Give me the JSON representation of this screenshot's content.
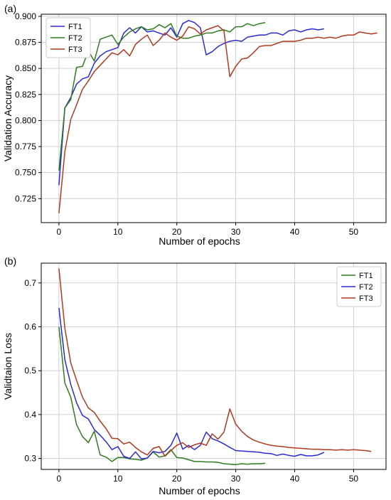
{
  "chart_data": [
    {
      "panel": "(a)",
      "type": "line",
      "xlabel": "Number of epochs",
      "ylabel": "Validation Accuracy",
      "xlim": [
        -3,
        55.5
      ],
      "ylim": [
        0.702,
        0.902
      ],
      "xticks": [
        0,
        10,
        20,
        30,
        40,
        50
      ],
      "yticks": [
        0.725,
        0.75,
        0.775,
        0.8,
        0.825,
        0.85,
        0.875,
        0.9
      ],
      "ytick_labels": [
        "0.725",
        "0.750",
        "0.775",
        "0.800",
        "0.825",
        "0.850",
        "0.875",
        "0.900"
      ],
      "grid": true,
      "legend_position": "top-left",
      "series": [
        {
          "name": "FT1",
          "color": "#2a2ad6",
          "x": [
            0,
            1,
            2,
            3,
            4,
            5,
            6,
            7,
            8,
            9,
            10,
            11,
            12,
            13,
            14,
            15,
            16,
            17,
            18,
            19,
            20,
            21,
            22,
            23,
            24,
            25,
            26,
            27,
            28,
            29,
            30,
            31,
            32,
            33,
            34,
            35,
            36,
            37,
            38,
            39,
            40,
            41,
            42,
            43,
            44,
            45
          ],
          "y": [
            0.738,
            0.812,
            0.822,
            0.835,
            0.84,
            0.842,
            0.855,
            0.862,
            0.866,
            0.868,
            0.87,
            0.884,
            0.889,
            0.884,
            0.89,
            0.885,
            0.886,
            0.884,
            0.882,
            0.889,
            0.88,
            0.893,
            0.896,
            0.894,
            0.889,
            0.863,
            0.866,
            0.871,
            0.874,
            0.876,
            0.877,
            0.876,
            0.88,
            0.881,
            0.882,
            0.882,
            0.884,
            0.884,
            0.882,
            0.886,
            0.887,
            0.885,
            0.887,
            0.888,
            0.887,
            0.888
          ]
        },
        {
          "name": "FT2",
          "color": "#2e7d1e",
          "x": [
            0,
            1,
            2,
            3,
            4,
            5,
            6,
            7,
            8,
            9,
            10,
            11,
            12,
            13,
            14,
            15,
            16,
            17,
            18,
            19,
            20,
            21,
            22,
            23,
            24,
            25,
            26,
            27,
            28,
            29,
            30,
            31,
            32,
            33,
            34,
            35
          ],
          "y": [
            0.752,
            0.812,
            0.82,
            0.851,
            0.852,
            0.867,
            0.857,
            0.878,
            0.88,
            0.882,
            0.873,
            0.88,
            0.885,
            0.888,
            0.89,
            0.887,
            0.888,
            0.892,
            0.889,
            0.893,
            0.881,
            0.879,
            0.879,
            0.881,
            0.882,
            0.884,
            0.884,
            0.886,
            0.887,
            0.885,
            0.89,
            0.89,
            0.893,
            0.891,
            0.893,
            0.894
          ]
        },
        {
          "name": "FT3",
          "color": "#b03a1e",
          "x": [
            0,
            1,
            2,
            3,
            4,
            5,
            6,
            7,
            8,
            9,
            10,
            11,
            12,
            13,
            14,
            15,
            16,
            17,
            18,
            19,
            20,
            21,
            22,
            23,
            24,
            25,
            26,
            27,
            28,
            29,
            30,
            31,
            32,
            33,
            34,
            35,
            36,
            37,
            38,
            39,
            40,
            41,
            42,
            43,
            44,
            45,
            46,
            47,
            48,
            49,
            50,
            51,
            52,
            53,
            54
          ],
          "y": [
            0.711,
            0.77,
            0.801,
            0.815,
            0.83,
            0.838,
            0.847,
            0.853,
            0.859,
            0.865,
            0.863,
            0.868,
            0.862,
            0.873,
            0.878,
            0.882,
            0.872,
            0.877,
            0.884,
            0.88,
            0.877,
            0.881,
            0.89,
            0.888,
            0.883,
            0.887,
            0.889,
            0.891,
            0.886,
            0.842,
            0.852,
            0.859,
            0.86,
            0.865,
            0.871,
            0.872,
            0.872,
            0.874,
            0.876,
            0.876,
            0.876,
            0.877,
            0.879,
            0.879,
            0.88,
            0.879,
            0.88,
            0.879,
            0.881,
            0.882,
            0.882,
            0.885,
            0.884,
            0.883,
            0.884
          ]
        }
      ]
    },
    {
      "panel": "(b)",
      "type": "line",
      "xlabel": "Number of epochs",
      "ylabel": "Validtaion Loss",
      "xlim": [
        -3,
        55.5
      ],
      "ylim": [
        0.275,
        0.745
      ],
      "xticks": [
        0,
        10,
        20,
        30,
        40,
        50
      ],
      "yticks": [
        0.3,
        0.4,
        0.5,
        0.6,
        0.7
      ],
      "ytick_labels": [
        "0.3",
        "0.4",
        "0.5",
        "0.6",
        "0.7"
      ],
      "grid": true,
      "legend_position": "top-right",
      "series": [
        {
          "name": "FT1",
          "color": "#2e7d1e",
          "x": [
            0,
            1,
            2,
            3,
            4,
            5,
            6,
            7,
            8,
            9,
            10,
            11,
            12,
            13,
            14,
            15,
            16,
            17,
            18,
            19,
            20,
            21,
            22,
            23,
            24,
            25,
            26,
            27,
            28,
            29,
            30,
            31,
            32,
            33,
            34,
            35
          ],
          "y": [
            0.6,
            0.472,
            0.44,
            0.377,
            0.35,
            0.336,
            0.362,
            0.308,
            0.303,
            0.293,
            0.302,
            0.302,
            0.299,
            0.298,
            0.296,
            0.301,
            0.315,
            0.303,
            0.306,
            0.32,
            0.302,
            0.301,
            0.297,
            0.293,
            0.293,
            0.292,
            0.292,
            0.291,
            0.288,
            0.287,
            0.286,
            0.288,
            0.287,
            0.288,
            0.288,
            0.289
          ]
        },
        {
          "name": "FT2",
          "color": "#2a2ad6",
          "x": [
            0,
            1,
            2,
            3,
            4,
            5,
            6,
            7,
            8,
            9,
            10,
            11,
            12,
            13,
            14,
            15,
            16,
            17,
            18,
            19,
            20,
            21,
            22,
            23,
            24,
            25,
            26,
            27,
            28,
            29,
            30,
            31,
            32,
            33,
            34,
            35,
            36,
            37,
            38,
            39,
            40,
            41,
            42,
            43,
            44,
            45
          ],
          "y": [
            0.643,
            0.525,
            0.469,
            0.427,
            0.398,
            0.39,
            0.366,
            0.353,
            0.338,
            0.32,
            0.327,
            0.305,
            0.3,
            0.315,
            0.299,
            0.301,
            0.316,
            0.313,
            0.316,
            0.33,
            0.358,
            0.321,
            0.33,
            0.32,
            0.33,
            0.36,
            0.345,
            0.34,
            0.333,
            0.325,
            0.318,
            0.317,
            0.316,
            0.315,
            0.314,
            0.312,
            0.311,
            0.307,
            0.31,
            0.307,
            0.305,
            0.309,
            0.306,
            0.306,
            0.308,
            0.314
          ]
        },
        {
          "name": "FT3",
          "color": "#b03a1e",
          "x": [
            0,
            1,
            2,
            3,
            4,
            5,
            6,
            7,
            8,
            9,
            10,
            11,
            12,
            13,
            14,
            15,
            16,
            17,
            18,
            19,
            20,
            21,
            22,
            23,
            24,
            25,
            26,
            27,
            28,
            29,
            30,
            31,
            32,
            33,
            34,
            35,
            36,
            37,
            38,
            39,
            40,
            41,
            42,
            43,
            44,
            45,
            46,
            47,
            48,
            49,
            50,
            51,
            52,
            53
          ],
          "y": [
            0.733,
            0.597,
            0.518,
            0.478,
            0.44,
            0.415,
            0.405,
            0.385,
            0.368,
            0.346,
            0.345,
            0.333,
            0.337,
            0.325,
            0.315,
            0.308,
            0.323,
            0.327,
            0.305,
            0.318,
            0.33,
            0.336,
            0.325,
            0.331,
            0.335,
            0.33,
            0.356,
            0.344,
            0.36,
            0.413,
            0.378,
            0.362,
            0.35,
            0.342,
            0.337,
            0.333,
            0.33,
            0.328,
            0.327,
            0.325,
            0.324,
            0.323,
            0.322,
            0.321,
            0.321,
            0.32,
            0.32,
            0.319,
            0.32,
            0.319,
            0.32,
            0.319,
            0.318,
            0.316
          ]
        }
      ]
    }
  ]
}
